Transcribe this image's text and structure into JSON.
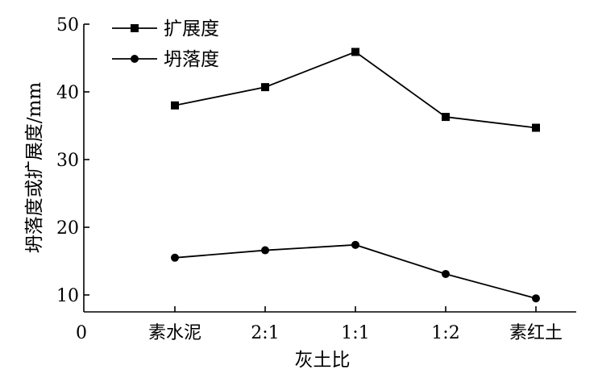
{
  "chart_data": {
    "type": "line",
    "title": "",
    "xlabel": "灰土比",
    "ylabel": "坍落度或扩展度/mm",
    "x_origin_label": "0",
    "categories": [
      "素水泥",
      "2:1",
      "1:1",
      "1:2",
      "素红土"
    ],
    "ylim": [
      7.5,
      50
    ],
    "y_ticks": [
      10,
      20,
      30,
      40,
      50
    ],
    "grid": false,
    "legend_position": "top-left",
    "series": [
      {
        "name": "扩展度",
        "marker": "square",
        "values": [
          38.0,
          40.7,
          45.9,
          36.3,
          34.7
        ]
      },
      {
        "name": "坍落度",
        "marker": "circle",
        "values": [
          15.5,
          16.6,
          17.4,
          13.1,
          9.5
        ]
      }
    ]
  }
}
